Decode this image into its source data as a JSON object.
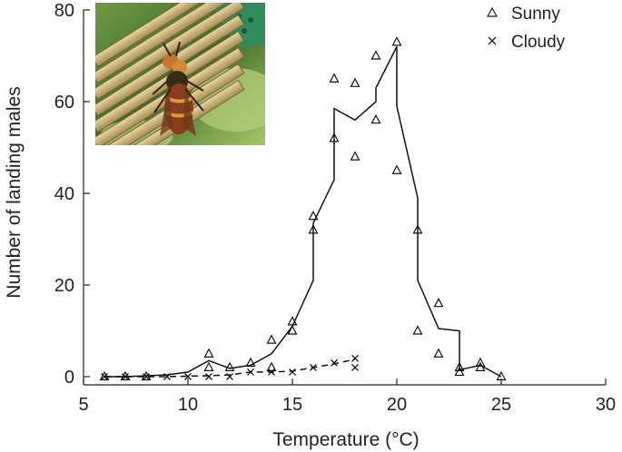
{
  "chart_data": {
    "type": "scatter",
    "xlabel": "Temperature (°C)",
    "ylabel": "Number of landing males",
    "xlim": [
      5,
      30
    ],
    "ylim": [
      0,
      80
    ],
    "x_ticks": [
      5,
      10,
      15,
      20,
      25,
      30
    ],
    "y_ticks": [
      0,
      20,
      40,
      60,
      80
    ],
    "legend_position": "top-right",
    "inset": "photograph of a hornet on bamboo stems",
    "series": [
      {
        "name": "Sunny",
        "marker": "triangle",
        "points": [
          [
            6,
            0
          ],
          [
            7,
            0
          ],
          [
            8,
            0
          ],
          [
            11,
            5
          ],
          [
            11,
            2
          ],
          [
            12,
            2
          ],
          [
            13,
            3
          ],
          [
            14,
            8
          ],
          [
            14,
            2
          ],
          [
            15,
            12
          ],
          [
            15,
            10
          ],
          [
            16,
            35
          ],
          [
            16,
            32
          ],
          [
            17,
            65
          ],
          [
            17,
            52
          ],
          [
            18,
            64
          ],
          [
            18,
            48
          ],
          [
            19,
            70
          ],
          [
            19,
            56
          ],
          [
            20,
            73
          ],
          [
            20,
            45
          ],
          [
            21,
            32
          ],
          [
            21,
            10
          ],
          [
            22,
            16
          ],
          [
            22,
            5
          ],
          [
            23,
            2
          ],
          [
            23,
            1
          ],
          [
            24,
            3
          ],
          [
            24,
            2
          ],
          [
            25,
            0
          ]
        ],
        "trend": [
          [
            6,
            0
          ],
          [
            7,
            0
          ],
          [
            8,
            0.2
          ],
          [
            9,
            0.4
          ],
          [
            10,
            1
          ],
          [
            11,
            3.5
          ],
          [
            12,
            1.8
          ],
          [
            13,
            2.5
          ],
          [
            14,
            5
          ],
          [
            15,
            11
          ],
          [
            16,
            21
          ],
          [
            16,
            33.5
          ],
          [
            17,
            43
          ],
          [
            17,
            58.5
          ],
          [
            18,
            56
          ],
          [
            19,
            60
          ],
          [
            19,
            63
          ],
          [
            20,
            72
          ],
          [
            20,
            59
          ],
          [
            21,
            39
          ],
          [
            21,
            21
          ],
          [
            22,
            10.5
          ],
          [
            23,
            10
          ],
          [
            23,
            1.5
          ],
          [
            24,
            2.5
          ],
          [
            25,
            0
          ]
        ]
      },
      {
        "name": "Cloudy",
        "marker": "x",
        "points": [
          [
            6,
            0
          ],
          [
            7,
            0
          ],
          [
            8,
            0
          ],
          [
            9,
            0
          ],
          [
            10,
            0
          ],
          [
            11,
            0
          ],
          [
            12,
            0
          ],
          [
            13,
            1
          ],
          [
            14,
            1
          ],
          [
            15,
            1
          ],
          [
            16,
            2
          ],
          [
            17,
            3
          ],
          [
            18,
            4
          ],
          [
            18,
            2
          ]
        ],
        "trend": [
          [
            6,
            0
          ],
          [
            7,
            0
          ],
          [
            8,
            0
          ],
          [
            9,
            0
          ],
          [
            10,
            0.1
          ],
          [
            11,
            0.2
          ],
          [
            12,
            0.4
          ],
          [
            13,
            1
          ],
          [
            14,
            1
          ],
          [
            15,
            1.2
          ],
          [
            16,
            2
          ],
          [
            17,
            2.8
          ],
          [
            18,
            3.8
          ]
        ]
      }
    ]
  }
}
